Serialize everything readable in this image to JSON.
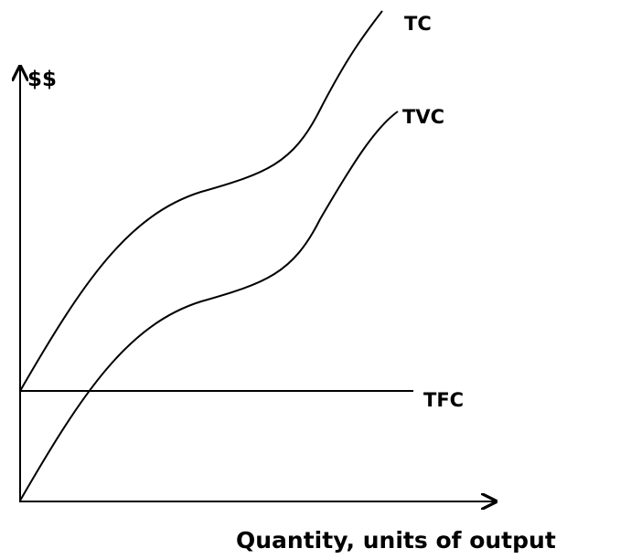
{
  "axes": {
    "y_label": "$$",
    "x_label": "Quantity, units of output"
  },
  "curves": [
    {
      "label": "TC"
    },
    {
      "label": "TVC"
    },
    {
      "label": "TFC"
    }
  ]
}
